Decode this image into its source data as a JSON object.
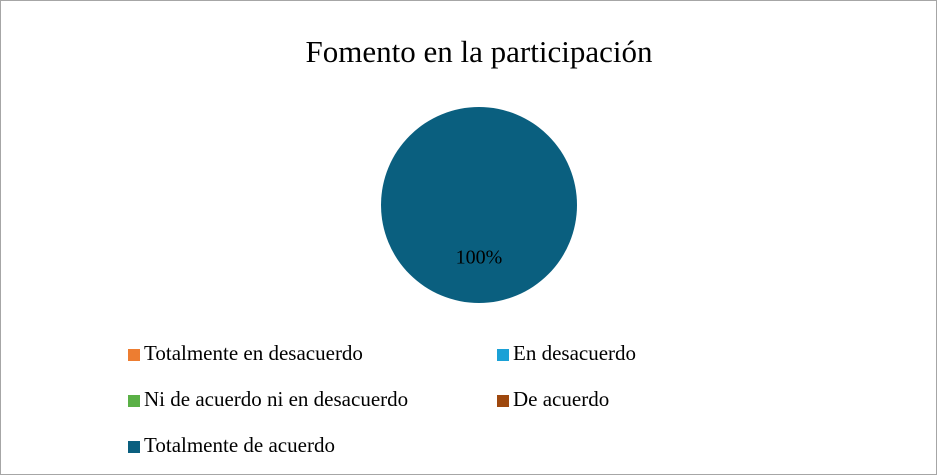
{
  "chart_data": {
    "type": "pie",
    "title": "Fomento en la participación",
    "categories": [
      "Totalmente en desacuerdo",
      "En desacuerdo",
      "Ni de acuerdo ni en desacuerdo",
      "De acuerdo",
      "Totalmente de acuerdo"
    ],
    "values": [
      0,
      0,
      0,
      0,
      100
    ],
    "value_labels": [
      null,
      null,
      null,
      null,
      "100%"
    ],
    "colors": [
      "#ed7d31",
      "#1ba1d6",
      "#5ab046",
      "#9e480e",
      "#0a5f7f"
    ],
    "legend": "bottom"
  }
}
